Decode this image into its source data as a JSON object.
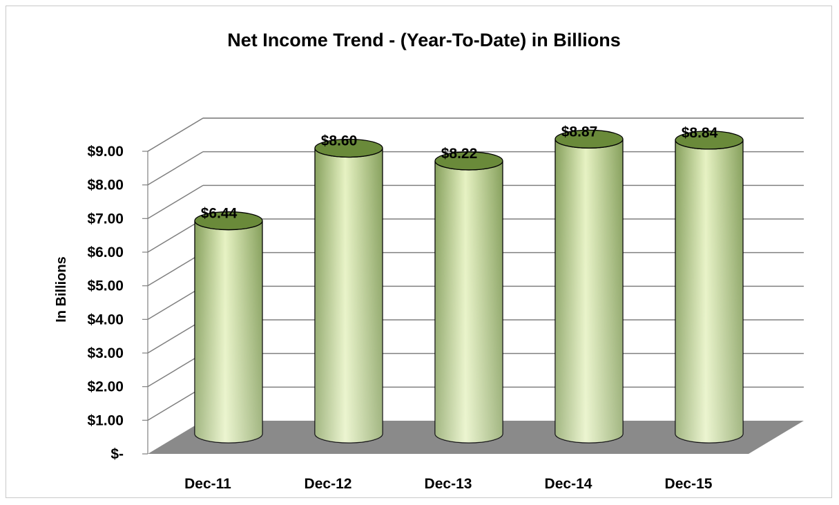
{
  "chart_data": {
    "type": "bar",
    "style": "3d-cylinder",
    "title": "Net Income Trend - (Year-To-Date) in Billions",
    "ylabel": "In Billions",
    "xlabel": "",
    "categories": [
      "Dec-11",
      "Dec-12",
      "Dec-13",
      "Dec-14",
      "Dec-15"
    ],
    "values": [
      6.44,
      8.6,
      8.22,
      8.87,
      8.84
    ],
    "data_labels": [
      "$6.44",
      "$8.60",
      "$8.22",
      "$8.87",
      "$8.84"
    ],
    "ylim": [
      0,
      9
    ],
    "y_ticks": [
      0,
      1,
      2,
      3,
      4,
      5,
      6,
      7,
      8,
      9
    ],
    "y_tick_labels": [
      "$-",
      "$1.00",
      "$2.00",
      "$3.00",
      "$4.00",
      "$5.00",
      "$6.00",
      "$7.00",
      "$8.00",
      "$9.00"
    ],
    "grid": true,
    "legend": "none",
    "colors": {
      "bar_light": "#e6f2c2",
      "bar_dark": "#86a05c",
      "bar_top": "#6a8a3a",
      "floor": "#8a8a8a",
      "grid": "#7f7f7f"
    }
  }
}
